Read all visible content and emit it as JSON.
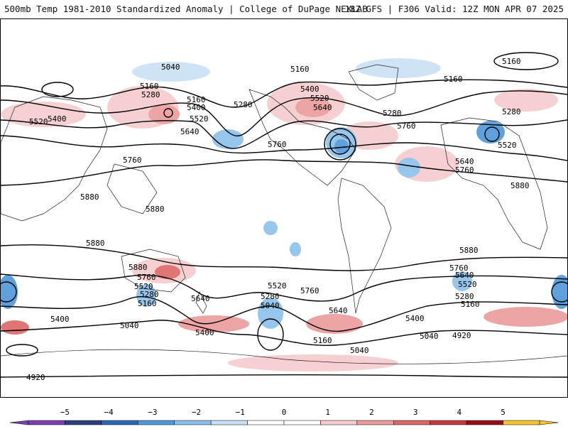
{
  "header": {
    "title_left": "500mb Temp 1981-2010 Standardized Anomaly | College of DuPage NEXLAB",
    "title_right": "18Z GFS | F306 Valid: 12Z MON APR 07 2025"
  },
  "contour_labels": [
    {
      "id": "c1",
      "text": "5040"
    },
    {
      "id": "c2",
      "text": "5160"
    },
    {
      "id": "c3",
      "text": "5280"
    },
    {
      "id": "c4",
      "text": "5400"
    },
    {
      "id": "c5",
      "text": "5520"
    },
    {
      "id": "c6",
      "text": "5520"
    },
    {
      "id": "c7",
      "text": "5160"
    },
    {
      "id": "c8",
      "text": "5280"
    },
    {
      "id": "c9",
      "text": "5400"
    },
    {
      "id": "c10",
      "text": "5640"
    },
    {
      "id": "c11",
      "text": "5160"
    },
    {
      "id": "c12",
      "text": "5400"
    },
    {
      "id": "c13",
      "text": "5520"
    },
    {
      "id": "c14",
      "text": "5640"
    },
    {
      "id": "c15",
      "text": "5280"
    },
    {
      "id": "c16",
      "text": "5280"
    },
    {
      "id": "c17",
      "text": "5760"
    },
    {
      "id": "c18",
      "text": "5760"
    },
    {
      "id": "c19",
      "text": "5160"
    },
    {
      "id": "c20",
      "text": "5160"
    },
    {
      "id": "c21",
      "text": "5520"
    },
    {
      "id": "c22",
      "text": "5640"
    },
    {
      "id": "c23",
      "text": "5760"
    },
    {
      "id": "c24",
      "text": "5760"
    },
    {
      "id": "c25",
      "text": "5880"
    },
    {
      "id": "c26",
      "text": "5880"
    },
    {
      "id": "c27",
      "text": "5880"
    },
    {
      "id": "c28",
      "text": "5880"
    },
    {
      "id": "c29",
      "text": "5880"
    },
    {
      "id": "c30",
      "text": "5880"
    },
    {
      "id": "c31",
      "text": "5760"
    },
    {
      "id": "c32",
      "text": "5520"
    },
    {
      "id": "c33",
      "text": "5280"
    },
    {
      "id": "c34",
      "text": "5160"
    },
    {
      "id": "c35",
      "text": "5640"
    },
    {
      "id": "c36",
      "text": "5400"
    },
    {
      "id": "c37",
      "text": "5040"
    },
    {
      "id": "c38",
      "text": "5400"
    },
    {
      "id": "c39",
      "text": "5520"
    },
    {
      "id": "c40",
      "text": "5280"
    },
    {
      "id": "c41",
      "text": "5040"
    },
    {
      "id": "c42",
      "text": "5760"
    },
    {
      "id": "c43",
      "text": "5640"
    },
    {
      "id": "c44",
      "text": "5160"
    },
    {
      "id": "c45",
      "text": "5040"
    },
    {
      "id": "c46",
      "text": "5400"
    },
    {
      "id": "c47",
      "text": "5760"
    },
    {
      "id": "c48",
      "text": "5640"
    },
    {
      "id": "c49",
      "text": "5520"
    },
    {
      "id": "c50",
      "text": "5280"
    },
    {
      "id": "c51",
      "text": "5160"
    },
    {
      "id": "c52",
      "text": "5040"
    },
    {
      "id": "c53",
      "text": "4920"
    },
    {
      "id": "c54",
      "text": "4920"
    }
  ],
  "colorbar": {
    "ticks": [
      "−5",
      "−4",
      "−3",
      "−2",
      "−1",
      "0",
      "1",
      "2",
      "3",
      "4",
      "5"
    ],
    "colors": [
      "#7a3fb0",
      "#2a3f7e",
      "#2a67b8",
      "#4f97da",
      "#8cc0ea",
      "#c9e0f5",
      "#ffffff",
      "#ffffff",
      "#f6cccc",
      "#ec9b9b",
      "#dc6767",
      "#c43a3a",
      "#960e16",
      "#f2c32c"
    ]
  }
}
